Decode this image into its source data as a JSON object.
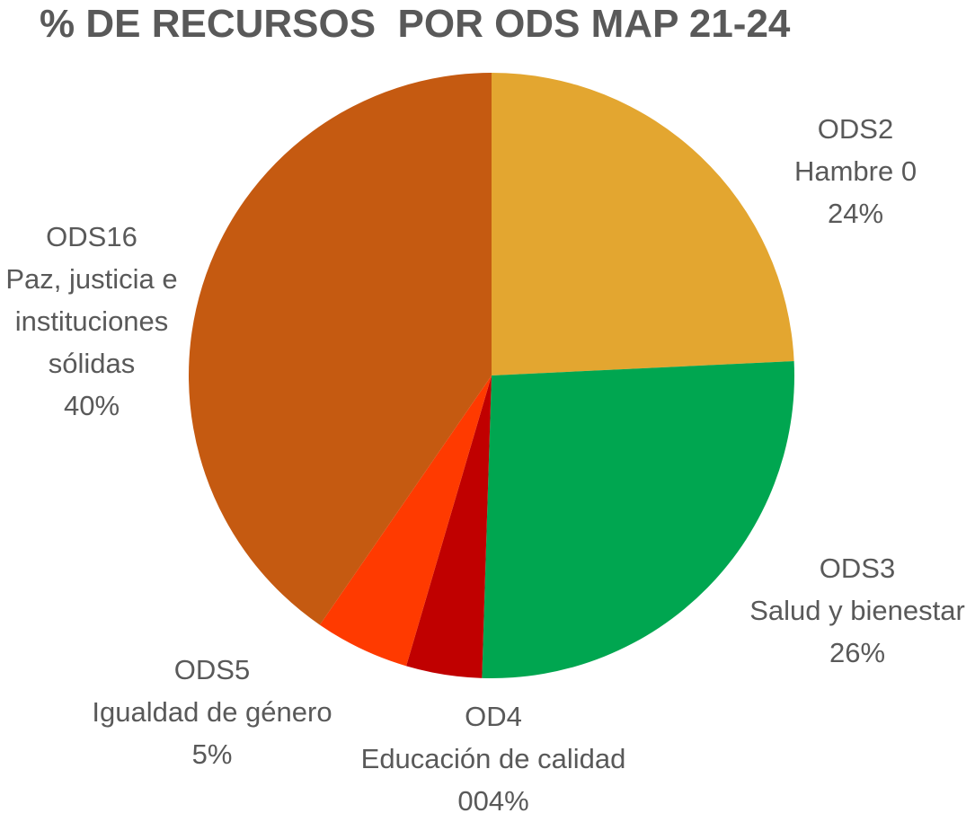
{
  "chart_data": {
    "type": "pie",
    "title": "% DE RECURSOS  POR ODS MAP 21-24",
    "slices": [
      {
        "code": "ODS2",
        "name": "Hambre 0",
        "value": 24,
        "value_label": "24%",
        "color": "#E3A630"
      },
      {
        "code": "ODS3",
        "name": "Salud y bienestar",
        "value": 26,
        "value_label": "26%",
        "color": "#00A650"
      },
      {
        "code": "OD4",
        "name": "Educación de calidad",
        "value": 4,
        "value_label": "004%",
        "color": "#C00000"
      },
      {
        "code": "ODS5",
        "name": "Igualdad de género",
        "value": 5,
        "value_label": "5%",
        "color": "#FF3A00"
      },
      {
        "code": "ODS16",
        "name": "Paz, justicia e instituciones sólidas",
        "name_lines": [
          "Paz, justicia e",
          "instituciones",
          "sólidas"
        ],
        "value": 40,
        "value_label": "40%",
        "color": "#C55A11"
      }
    ]
  }
}
